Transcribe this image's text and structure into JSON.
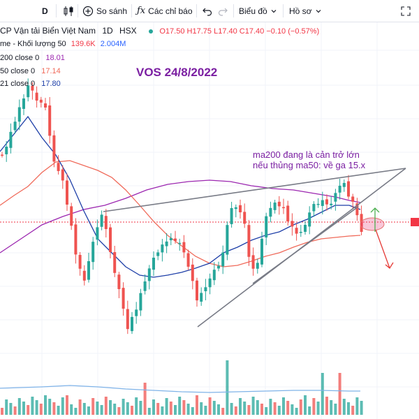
{
  "toolbar": {
    "interval": "D",
    "compare_label": "So sánh",
    "indicators_label": "Các chỉ báo",
    "chart_type_label": "Biểu đồ",
    "profile_label": "Hồ sơ"
  },
  "symbol": {
    "name": "CP Vận tải Biển Việt Nam",
    "timeframe": "1D",
    "exchange": "HSX",
    "open": "O17.50",
    "high": "H17.75",
    "low": "L17.40",
    "close": "C17.40",
    "change": "−0.10 (−0.57%)"
  },
  "indicators": {
    "volume": {
      "label": "me - Khối lượng 50",
      "value1": "139.6K",
      "value2": "2.004M"
    },
    "ma200": {
      "label": "200 close 0",
      "value": "18.01"
    },
    "ma50": {
      "label": "50 close 0",
      "value": "17.14"
    },
    "ma21": {
      "label": "21 close 0",
      "value": "17.80"
    }
  },
  "annotations": {
    "title": "VOS 24/8/2022",
    "note_line1": "ma200 đang là cản trở lớn",
    "note_line2": "nếu thủng ma50: về ga 15.x"
  },
  "colors": {
    "up": "#26a69a",
    "down": "#ef5350",
    "ma200": "#9c27b0",
    "ma50": "#f06a5a",
    "ma21": "#1e3fa8",
    "annotation": "#7b1fa2",
    "trendline": "#787b86"
  },
  "icons": [
    "candles-icon",
    "plus-circle-icon",
    "fx-icon",
    "undo-icon",
    "redo-icon",
    "chevron-down-icon",
    "fullscreen-icon"
  ]
}
